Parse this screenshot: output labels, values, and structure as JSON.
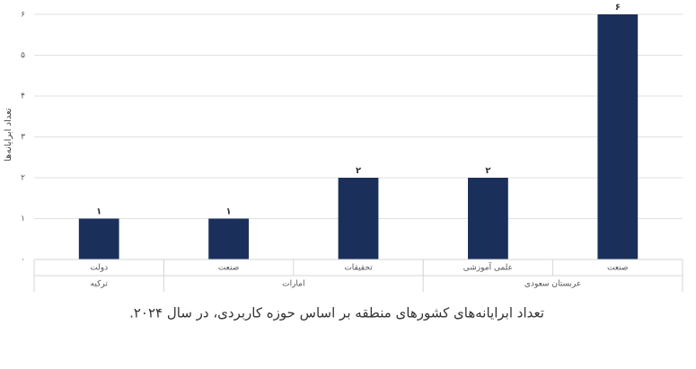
{
  "chart_data": {
    "type": "bar",
    "caption": "تعداد ابرایانه‌های کشورهای منطقه بر اساس حوزه کاربردی، در سال ۲۰۲۴.",
    "y_label": "تعداد ابرایانه‌ها",
    "categories": [
      "دولت",
      "صنعت",
      "تحقیقات",
      "علمی آموزشی",
      "صنعت"
    ],
    "groups": [
      {
        "name": "ترکیه",
        "size": 1
      },
      {
        "name": "امارات",
        "size": 2
      },
      {
        "name": "عربستان سعودی",
        "size": 2
      }
    ],
    "values": [
      1,
      1,
      2,
      2,
      6
    ],
    "value_labels": [
      "۱",
      "۱",
      "۲",
      "۲",
      "۶"
    ],
    "color": "#1b2f5b",
    "ylim": [
      0,
      6
    ],
    "yticks": [
      {
        "value": 0,
        "label": "۰"
      },
      {
        "value": 1,
        "label": "۱"
      },
      {
        "value": 2,
        "label": "۲"
      },
      {
        "value": 3,
        "label": "۳"
      },
      {
        "value": 4,
        "label": "۴"
      },
      {
        "value": 5,
        "label": "۵"
      },
      {
        "value": 6,
        "label": "۶"
      }
    ],
    "grid": true
  }
}
